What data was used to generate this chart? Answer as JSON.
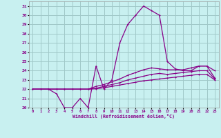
{
  "xlabel": "Windchill (Refroidissement éolien,°C)",
  "background_color": "#c8f0f0",
  "grid_color": "#a0c8c8",
  "line_color": "#880088",
  "xlim": [
    -0.5,
    23.5
  ],
  "ylim": [
    20,
    31.5
  ],
  "yticks": [
    20,
    21,
    22,
    23,
    24,
    25,
    26,
    27,
    28,
    29,
    30,
    31
  ],
  "xticks": [
    0,
    1,
    2,
    3,
    4,
    5,
    6,
    7,
    8,
    9,
    10,
    11,
    12,
    13,
    14,
    15,
    16,
    17,
    18,
    19,
    20,
    21,
    22,
    23
  ],
  "line1_x": [
    0,
    1,
    2,
    3,
    4,
    5,
    6,
    7,
    8,
    9,
    10,
    11,
    12,
    13,
    14,
    15,
    16,
    17,
    18,
    19,
    20,
    21,
    22,
    23
  ],
  "line1_y": [
    22,
    22,
    22,
    21.5,
    20,
    20,
    21,
    20,
    24.5,
    22,
    23,
    27,
    29,
    30,
    31,
    30.5,
    30,
    25,
    24.2,
    24,
    24,
    24.5,
    24.5,
    24
  ],
  "line2_x": [
    0,
    1,
    2,
    3,
    4,
    5,
    6,
    7,
    8,
    9,
    10,
    11,
    12,
    13,
    14,
    15,
    16,
    17,
    18,
    19,
    20,
    21,
    22,
    23
  ],
  "line2_y": [
    22,
    22,
    22,
    22,
    22,
    22,
    22,
    22,
    22.3,
    22.5,
    22.8,
    23.1,
    23.5,
    23.8,
    24.1,
    24.3,
    24.2,
    24.1,
    24.1,
    24.1,
    24.3,
    24.5,
    24.5,
    23.2
  ],
  "line3_x": [
    0,
    1,
    2,
    3,
    4,
    5,
    6,
    7,
    8,
    9,
    10,
    11,
    12,
    13,
    14,
    15,
    16,
    17,
    18,
    19,
    20,
    21,
    22,
    23
  ],
  "line3_y": [
    22,
    22,
    22,
    22,
    22,
    22,
    22,
    22,
    22.1,
    22.3,
    22.5,
    22.7,
    23.0,
    23.2,
    23.4,
    23.6,
    23.7,
    23.6,
    23.7,
    23.8,
    23.9,
    24.0,
    24.0,
    23.1
  ],
  "line4_x": [
    0,
    1,
    2,
    3,
    4,
    5,
    6,
    7,
    8,
    9,
    10,
    11,
    12,
    13,
    14,
    15,
    16,
    17,
    18,
    19,
    20,
    21,
    22,
    23
  ],
  "line4_y": [
    22,
    22,
    22,
    22,
    22,
    22,
    22,
    22,
    22.05,
    22.15,
    22.3,
    22.45,
    22.6,
    22.75,
    22.9,
    23.0,
    23.1,
    23.2,
    23.3,
    23.4,
    23.5,
    23.6,
    23.6,
    23.0
  ]
}
